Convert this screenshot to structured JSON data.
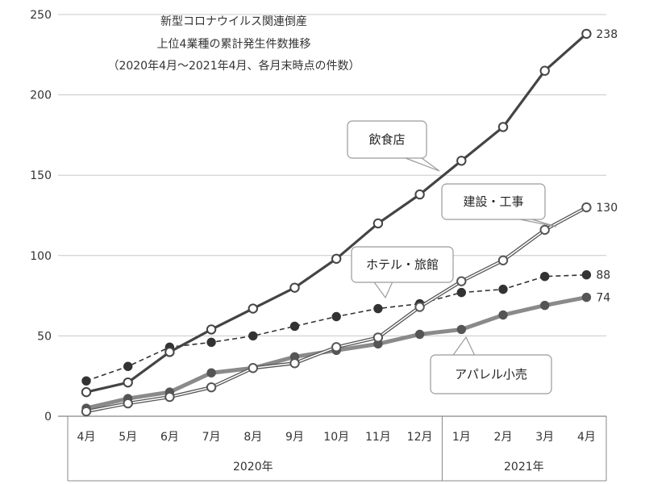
{
  "chart_data": {
    "type": "line",
    "title_lines": [
      "新型コロナウイルス関連倒産",
      "上位4業種の累計発生件数推移",
      "（2020年4月～2021年4月、各月末時点の件数）"
    ],
    "categories": [
      "4月",
      "5月",
      "6月",
      "7月",
      "8月",
      "9月",
      "10月",
      "11月",
      "12月",
      "1月",
      "2月",
      "3月",
      "4月"
    ],
    "year_groups": [
      {
        "label": "2020年",
        "from": 0,
        "to": 8
      },
      {
        "label": "2021年",
        "from": 9,
        "to": 12
      }
    ],
    "ylim": [
      0,
      250
    ],
    "yticks": [
      0,
      50,
      100,
      150,
      200,
      250
    ],
    "grid": true,
    "series": [
      {
        "name": "飲食店",
        "values": [
          15,
          21,
          40,
          54,
          67,
          80,
          98,
          120,
          138,
          159,
          180,
          215,
          238
        ],
        "end_label": "238",
        "color": "#444444",
        "style": "solid-thick",
        "marker": "open"
      },
      {
        "name": "建設・工事",
        "values": [
          3,
          8,
          12,
          18,
          30,
          33,
          43,
          49,
          68,
          84,
          97,
          116,
          130
        ],
        "end_label": "130",
        "color": "#555555",
        "style": "double",
        "marker": "open"
      },
      {
        "name": "ホテル・旅館",
        "values": [
          22,
          31,
          43,
          46,
          50,
          56,
          62,
          67,
          70,
          77,
          79,
          87,
          88
        ],
        "end_label": "88",
        "color": "#333333",
        "style": "dashed",
        "marker": "filled"
      },
      {
        "name": "アパレル小売",
        "values": [
          5,
          11,
          15,
          27,
          30,
          37,
          41,
          45,
          51,
          54,
          63,
          69,
          74
        ],
        "end_label": "74",
        "color": "#555555",
        "style": "solid-gray",
        "marker": "filled"
      }
    ]
  }
}
